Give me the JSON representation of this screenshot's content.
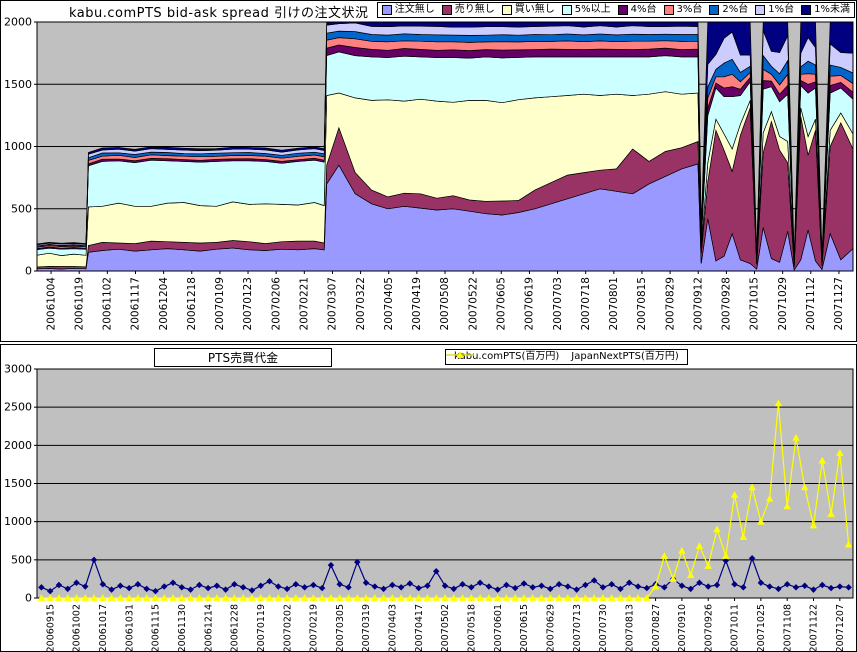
{
  "chart_data": [
    {
      "type": "area",
      "stacked": true,
      "title": "kabu.comPTS bid-ask spread 引けの注文状況",
      "plot_bg": "#C0C0C0",
      "grid": true,
      "legend_position": "top-right",
      "ylim": [
        0,
        2000
      ],
      "yticks": [
        0,
        500,
        1000,
        1500,
        2000
      ],
      "x_tick_labels": [
        "20061004",
        "20061019",
        "20061102",
        "20061117",
        "20061204",
        "20061218",
        "20070109",
        "20070123",
        "20070206",
        "20070221",
        "20070307",
        "20070322",
        "20070405",
        "20070419",
        "20070508",
        "20070522",
        "20070605",
        "20070619",
        "20070703",
        "20070718",
        "20070801",
        "20070815",
        "20070829",
        "20070912",
        "20070928",
        "20071015",
        "20071029",
        "20071112",
        "20071127"
      ],
      "x_pct": [
        0,
        1.5,
        3,
        4.5,
        6,
        6.3,
        8,
        10,
        12,
        14,
        16,
        18,
        20,
        22,
        24,
        26,
        28,
        30,
        32,
        34,
        35.2,
        35.5,
        37,
        39,
        41,
        43,
        45,
        47,
        49,
        51,
        53,
        55,
        57,
        59,
        61,
        63,
        65,
        67,
        69,
        71,
        73,
        75,
        77,
        79,
        81,
        81.4,
        82.2,
        83.2,
        84.2,
        85.2,
        86.2,
        87.4,
        88.2,
        89,
        90,
        91,
        92,
        92.8,
        93.6,
        94.5,
        95.4,
        96.2,
        97.2,
        98.5,
        100
      ],
      "series": [
        {
          "name": "注文無し",
          "color": "#9999FF",
          "values": [
            18,
            20,
            16,
            22,
            18,
            150,
            165,
            175,
            160,
            170,
            180,
            170,
            160,
            175,
            185,
            170,
            165,
            175,
            170,
            180,
            170,
            700,
            850,
            620,
            540,
            500,
            520,
            505,
            490,
            500,
            480,
            460,
            450,
            470,
            500,
            540,
            580,
            620,
            660,
            640,
            620,
            700,
            760,
            820,
            860,
            60,
            420,
            80,
            120,
            300,
            90,
            60,
            15,
            350,
            100,
            70,
            320,
            10,
            90,
            330,
            80,
            12,
            300,
            90,
            180
          ]
        },
        {
          "name": "売り無し",
          "color": "#993366",
          "values": [
            14,
            18,
            20,
            14,
            16,
            55,
            65,
            50,
            60,
            70,
            55,
            60,
            65,
            55,
            60,
            65,
            55,
            60,
            70,
            60,
            55,
            150,
            300,
            170,
            110,
            95,
            105,
            115,
            95,
            105,
            90,
            100,
            112,
            96,
            150,
            170,
            190,
            170,
            150,
            180,
            360,
            180,
            200,
            170,
            180,
            80,
            300,
            1050,
            850,
            500,
            1000,
            1250,
            40,
            600,
            1100,
            900,
            550,
            25,
            1150,
            600,
            1050,
            30,
            700,
            1100,
            800
          ]
        },
        {
          "name": "買い無し",
          "color": "#FFFFCC",
          "values": [
            95,
            105,
            88,
            100,
            92,
            310,
            290,
            320,
            300,
            280,
            310,
            320,
            300,
            290,
            310,
            300,
            320,
            300,
            290,
            310,
            300,
            560,
            280,
            600,
            720,
            780,
            740,
            760,
            780,
            750,
            800,
            810,
            790,
            810,
            740,
            690,
            640,
            630,
            600,
            600,
            430,
            540,
            480,
            430,
            390,
            40,
            150,
            90,
            130,
            180,
            90,
            60,
            10,
            160,
            80,
            110,
            170,
            8,
            70,
            150,
            90,
            10,
            130,
            80,
            120
          ]
        },
        {
          "name": "5%以上",
          "color": "#CCFFFF",
          "values": [
            45,
            40,
            52,
            44,
            48,
            330,
            360,
            340,
            350,
            370,
            340,
            330,
            350,
            360,
            330,
            350,
            340,
            330,
            350,
            340,
            350,
            320,
            330,
            340,
            350,
            340,
            360,
            340,
            350,
            360,
            340,
            350,
            360,
            340,
            330,
            320,
            310,
            300,
            310,
            300,
            310,
            300,
            290,
            300,
            290,
            50,
            380,
            250,
            300,
            420,
            230,
            150,
            20,
            350,
            200,
            280,
            380,
            15,
            180,
            350,
            250,
            15,
            300,
            200,
            280
          ]
        },
        {
          "name": "4%台",
          "color": "#660066",
          "values": [
            8,
            10,
            7,
            9,
            8,
            15,
            18,
            14,
            16,
            15,
            17,
            15,
            14,
            16,
            15,
            17,
            15,
            16,
            14,
            16,
            15,
            60,
            55,
            65,
            60,
            58,
            62,
            60,
            58,
            62,
            60,
            58,
            62,
            60,
            58,
            62,
            60,
            58,
            62,
            60,
            58,
            62,
            60,
            58,
            62,
            10,
            60,
            40,
            70,
            80,
            50,
            35,
            5,
            70,
            45,
            60,
            70,
            5,
            40,
            70,
            50,
            5,
            60,
            45,
            55
          ]
        },
        {
          "name": "3%台",
          "color": "#FF8080",
          "values": [
            12,
            10,
            14,
            11,
            12,
            28,
            24,
            30,
            26,
            28,
            25,
            27,
            29,
            25,
            28,
            26,
            28,
            25,
            27,
            26,
            28,
            65,
            60,
            70,
            65,
            68,
            62,
            66,
            68,
            64,
            66,
            62,
            68,
            64,
            66,
            62,
            68,
            64,
            66,
            62,
            68,
            64,
            60,
            66,
            64,
            12,
            80,
            50,
            90,
            100,
            60,
            40,
            6,
            90,
            55,
            75,
            90,
            6,
            50,
            85,
            60,
            6,
            75,
            55,
            70
          ]
        },
        {
          "name": "2%台",
          "color": "#0066CC",
          "values": [
            9,
            11,
            8,
            10,
            9,
            22,
            26,
            20,
            24,
            22,
            25,
            21,
            23,
            25,
            22,
            24,
            21,
            23,
            25,
            22,
            24,
            55,
            52,
            58,
            55,
            54,
            56,
            54,
            56,
            54,
            56,
            54,
            56,
            54,
            56,
            54,
            56,
            54,
            56,
            54,
            56,
            54,
            52,
            56,
            54,
            14,
            90,
            60,
            110,
            120,
            75,
            50,
            6,
            110,
            65,
            90,
            110,
            6,
            60,
            100,
            75,
            6,
            90,
            65,
            85
          ]
        },
        {
          "name": "1%台",
          "color": "#CCCCFF",
          "values": [
            10,
            9,
            12,
            10,
            11,
            28,
            24,
            30,
            26,
            28,
            25,
            29,
            26,
            24,
            28,
            26,
            29,
            25,
            27,
            28,
            26,
            65,
            60,
            70,
            65,
            68,
            64,
            66,
            68,
            64,
            66,
            68,
            64,
            66,
            64,
            68,
            66,
            64,
            66,
            64,
            68,
            64,
            62,
            66,
            64,
            20,
            180,
            120,
            200,
            220,
            140,
            90,
            10,
            200,
            120,
            170,
            200,
            10,
            110,
            190,
            140,
            10,
            170,
            120,
            160
          ]
        },
        {
          "name": "1%未満",
          "color": "#000080",
          "values": [
            6,
            7,
            6,
            8,
            6,
            14,
            16,
            13,
            15,
            14,
            16,
            14,
            15,
            13,
            16,
            14,
            15,
            16,
            13,
            15,
            14,
            55,
            55,
            55,
            60,
            58,
            56,
            58,
            56,
            58,
            56,
            58,
            56,
            58,
            56,
            58,
            56,
            58,
            56,
            58,
            56,
            58,
            54,
            56,
            58,
            60,
            400,
            600,
            350,
            250,
            550,
            700,
            30,
            300,
            600,
            450,
            280,
            25,
            650,
            300,
            550,
            25,
            350,
            600,
            400
          ]
        }
      ]
    },
    {
      "type": "line",
      "title": "PTS売買代金",
      "plot_bg": "#C0C0C0",
      "grid": true,
      "legend_position": "top",
      "ylim": [
        0,
        3000
      ],
      "yticks": [
        0,
        500,
        1000,
        1500,
        2000,
        2500,
        3000
      ],
      "x_tick_labels": [
        "20060915",
        "20061002",
        "20061017",
        "20061031",
        "20061115",
        "20061130",
        "20061214",
        "20061228",
        "20070119",
        "20070202",
        "20070219",
        "20070305",
        "20070319",
        "20070403",
        "20070417",
        "20070502",
        "20070518",
        "20070601",
        "20070615",
        "20070629",
        "20070713",
        "20070730",
        "20070813",
        "20070827",
        "20070910",
        "20070926",
        "20071011",
        "20071025",
        "20071108",
        "20071122",
        "20071207"
      ],
      "series": [
        {
          "name": "kabu.comPTS(百万円)",
          "color": "#000080",
          "marker": "diamond",
          "values": [
            140,
            90,
            170,
            120,
            200,
            150,
            500,
            180,
            110,
            160,
            130,
            180,
            120,
            90,
            150,
            200,
            140,
            110,
            170,
            130,
            160,
            110,
            180,
            140,
            100,
            160,
            220,
            150,
            120,
            180,
            140,
            170,
            130,
            430,
            180,
            140,
            470,
            200,
            150,
            120,
            170,
            140,
            190,
            130,
            160,
            350,
            160,
            120,
            180,
            140,
            200,
            150,
            110,
            170,
            130,
            190,
            140,
            160,
            120,
            180,
            150,
            110,
            170,
            230,
            140,
            180,
            120,
            200,
            150,
            130,
            180,
            140,
            250,
            160,
            120,
            200,
            150,
            170,
            490,
            180,
            140,
            520,
            200,
            150,
            120,
            180,
            140,
            160,
            110,
            170,
            130,
            150,
            140
          ]
        },
        {
          "name": "JapanNextPTS(百万円)",
          "color": "#FFFF00",
          "marker": "triangle",
          "values": [
            0,
            0,
            0,
            0,
            0,
            0,
            0,
            0,
            0,
            0,
            0,
            0,
            0,
            0,
            0,
            0,
            0,
            0,
            0,
            0,
            0,
            0,
            0,
            0,
            0,
            0,
            0,
            0,
            0,
            0,
            0,
            0,
            0,
            0,
            0,
            0,
            0,
            0,
            0,
            0,
            0,
            0,
            0,
            0,
            0,
            0,
            0,
            0,
            0,
            0,
            0,
            0,
            0,
            0,
            0,
            0,
            0,
            0,
            0,
            0,
            0,
            0,
            0,
            0,
            0,
            0,
            0,
            0,
            0,
            0,
            150,
            550,
            250,
            620,
            300,
            680,
            420,
            900,
            550,
            1350,
            800,
            1450,
            1000,
            1300,
            2550,
            1200,
            2100,
            1450,
            950,
            1800,
            1100,
            1900,
            700
          ]
        }
      ]
    }
  ]
}
